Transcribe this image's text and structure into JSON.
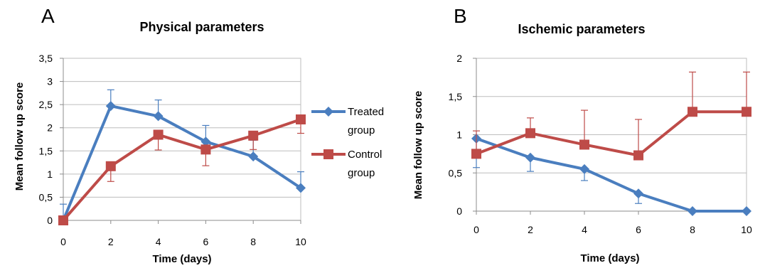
{
  "chart_data": [
    {
      "type": "line",
      "panel": "A",
      "title": "Physical parameters",
      "xlabel": "Time (days)",
      "ylabel": "Mean follow up score",
      "x": [
        0,
        2,
        4,
        6,
        8,
        10
      ],
      "x_ticks": [
        "0",
        "2",
        "4",
        "6",
        "8",
        "10"
      ],
      "ylim": [
        0,
        3.5
      ],
      "y_ticks": [
        "0",
        "0,5",
        "1",
        "1,5",
        "2",
        "2,5",
        "3",
        "3,5"
      ],
      "grid": true,
      "legend_position": "right",
      "series": [
        {
          "name": "Treated group",
          "legend_lines": [
            "Treated",
            "group"
          ],
          "color": "#4a7ebf",
          "marker": "diamond",
          "values": [
            0,
            2.47,
            2.25,
            1.7,
            1.38,
            0.7
          ],
          "error_upper": [
            0.35,
            0.35,
            0.35,
            0.35,
            0.35,
            0.35
          ]
        },
        {
          "name": "Control group",
          "legend_lines": [
            "Control",
            "group"
          ],
          "color": "#be4b48",
          "marker": "square",
          "values": [
            0,
            1.17,
            1.85,
            1.53,
            1.83,
            2.18
          ],
          "error_lower": [
            0,
            0.33,
            0.33,
            0.35,
            0.3,
            0.3
          ]
        }
      ]
    },
    {
      "type": "line",
      "panel": "B",
      "title": "Ischemic parameters",
      "xlabel": "Time (days)",
      "ylabel": "Mean follow up score",
      "x": [
        0,
        2,
        4,
        6,
        8,
        10
      ],
      "x_ticks": [
        "0",
        "2",
        "4",
        "6",
        "8",
        "10"
      ],
      "ylim": [
        0,
        2
      ],
      "y_ticks": [
        "0",
        "0,5",
        "1",
        "1,5",
        "2"
      ],
      "grid": true,
      "series": [
        {
          "color": "#4a7ebf",
          "marker": "diamond",
          "values": [
            0.95,
            0.7,
            0.55,
            0.23,
            0,
            0
          ],
          "error_lower": [
            0.38,
            0.18,
            0.15,
            0.13,
            0,
            0
          ]
        },
        {
          "color": "#be4b48",
          "marker": "square",
          "values": [
            0.75,
            1.02,
            0.87,
            0.73,
            1.3,
            1.3
          ],
          "error_upper": [
            0.3,
            0.2,
            0.45,
            0.47,
            0.52,
            0.52
          ]
        }
      ]
    }
  ]
}
